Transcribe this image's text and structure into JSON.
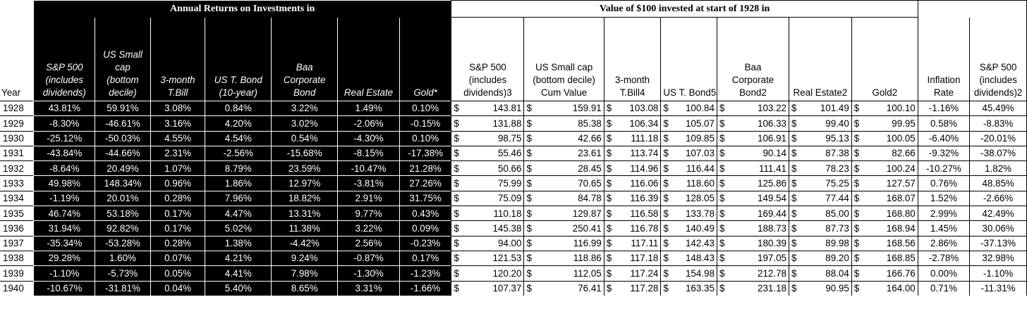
{
  "sections": {
    "annual": "Annual Returns on Investments in",
    "value": "Value of $100 invested at start of 1928 in"
  },
  "headers": {
    "year": "Year",
    "sp500": [
      "S&P 500",
      "(includes",
      "dividends)"
    ],
    "smallcap": [
      "US Small",
      "cap",
      "(bottom",
      "decile)"
    ],
    "tbill": [
      "3-month",
      "T.Bill"
    ],
    "tbond": [
      "US T. Bond",
      "(10-year)"
    ],
    "baa": [
      "Baa",
      "Corporate",
      "Bond"
    ],
    "realestate": [
      "Real Estate"
    ],
    "gold": [
      "Gold*"
    ],
    "v_sp500": [
      "S&P 500",
      "(includes",
      "dividends)3"
    ],
    "v_smallcap": [
      "US Small cap",
      "(bottom decile)",
      "Cum Value"
    ],
    "v_tbill": [
      "3-month",
      "T.Bill4"
    ],
    "v_tbond": [
      "US T. Bond5"
    ],
    "v_baa": [
      "Baa",
      "Corporate",
      "Bond2"
    ],
    "v_realestate": [
      "Real Estate2"
    ],
    "v_gold": [
      "Gold2"
    ],
    "inflation": [
      "Inflation",
      "Rate"
    ],
    "sp500_2": [
      "S&P 500",
      "(includes",
      "dividends)2"
    ]
  },
  "currency_symbol": "$",
  "rows": [
    {
      "year": "1928",
      "ret": [
        "43.81%",
        "59.91%",
        "3.08%",
        "0.84%",
        "3.22%",
        "1.49%",
        "0.10%"
      ],
      "val": [
        "143.81",
        "159.91",
        "103.08",
        "100.84",
        "103.22",
        "101.49",
        "100.10"
      ],
      "inflation": "-1.16%",
      "sp2": "45.49%"
    },
    {
      "year": "1929",
      "ret": [
        "-8.30%",
        "-46.61%",
        "3.16%",
        "4.20%",
        "3.02%",
        "-2.06%",
        "-0.15%"
      ],
      "val": [
        "131.88",
        "85.38",
        "106.34",
        "105.07",
        "106.33",
        "99.40",
        "99.95"
      ],
      "inflation": "0.58%",
      "sp2": "-8.83%"
    },
    {
      "year": "1930",
      "ret": [
        "-25.12%",
        "-50.03%",
        "4.55%",
        "4.54%",
        "0.54%",
        "-4.30%",
        "0.10%"
      ],
      "val": [
        "98.75",
        "42.66",
        "111.18",
        "109.85",
        "106.91",
        "95.13",
        "100.05"
      ],
      "inflation": "-6.40%",
      "sp2": "-20.01%"
    },
    {
      "year": "1931",
      "ret": [
        "-43.84%",
        "-44.66%",
        "2.31%",
        "-2.56%",
        "-15.68%",
        "-8.15%",
        "-17.38%"
      ],
      "val": [
        "55.46",
        "23.61",
        "113.74",
        "107.03",
        "90.14",
        "87.38",
        "82.66"
      ],
      "inflation": "-9.32%",
      "sp2": "-38.07%"
    },
    {
      "year": "1932",
      "ret": [
        "-8.64%",
        "20.49%",
        "1.07%",
        "8.79%",
        "23.59%",
        "-10.47%",
        "21.28%"
      ],
      "val": [
        "50.66",
        "28.45",
        "114.96",
        "116.44",
        "111.41",
        "78.23",
        "100.24"
      ],
      "inflation": "-10.27%",
      "sp2": "1.82%"
    },
    {
      "year": "1933",
      "ret": [
        "49.98%",
        "148.34%",
        "0.96%",
        "1.86%",
        "12.97%",
        "-3.81%",
        "27.26%"
      ],
      "val": [
        "75.99",
        "70.65",
        "116.06",
        "118.60",
        "125.86",
        "75.25",
        "127.57"
      ],
      "inflation": "0.76%",
      "sp2": "48.85%"
    },
    {
      "year": "1934",
      "ret": [
        "-1.19%",
        "20.01%",
        "0.28%",
        "7.96%",
        "18.82%",
        "2.91%",
        "31.75%"
      ],
      "val": [
        "75.09",
        "84.78",
        "116.39",
        "128.05",
        "149.54",
        "77.44",
        "168.07"
      ],
      "inflation": "1.52%",
      "sp2": "-2.66%"
    },
    {
      "year": "1935",
      "ret": [
        "46.74%",
        "53.18%",
        "0.17%",
        "4.47%",
        "13.31%",
        "9.77%",
        "0.43%"
      ],
      "val": [
        "110.18",
        "129.87",
        "116.58",
        "133.78",
        "169.44",
        "85.00",
        "168.80"
      ],
      "inflation": "2.99%",
      "sp2": "42.49%"
    },
    {
      "year": "1936",
      "ret": [
        "31.94%",
        "92.82%",
        "0.17%",
        "5.02%",
        "11.38%",
        "3.22%",
        "0.09%"
      ],
      "val": [
        "145.38",
        "250.41",
        "116.78",
        "140.49",
        "188.73",
        "87.73",
        "168.94"
      ],
      "inflation": "1.45%",
      "sp2": "30.06%"
    },
    {
      "year": "1937",
      "ret": [
        "-35.34%",
        "-53.28%",
        "0.28%",
        "1.38%",
        "-4.42%",
        "2.56%",
        "-0.23%"
      ],
      "val": [
        "94.00",
        "116.99",
        "117.11",
        "142.43",
        "180.39",
        "89.98",
        "168.56"
      ],
      "inflation": "2.86%",
      "sp2": "-37.13%"
    },
    {
      "year": "1938",
      "ret": [
        "29.28%",
        "1.60%",
        "0.07%",
        "4.21%",
        "9.24%",
        "-0.87%",
        "0.17%"
      ],
      "val": [
        "121.53",
        "118.86",
        "117.18",
        "148.43",
        "197.05",
        "89.20",
        "168.85"
      ],
      "inflation": "-2.78%",
      "sp2": "32.98%"
    },
    {
      "year": "1939",
      "ret": [
        "-1.10%",
        "-5.73%",
        "0.05%",
        "4.41%",
        "7.98%",
        "-1.30%",
        "-1.23%"
      ],
      "val": [
        "120.20",
        "112.05",
        "117.24",
        "154.98",
        "212.78",
        "88.04",
        "166.76"
      ],
      "inflation": "0.00%",
      "sp2": "-1.10%"
    },
    {
      "year": "1940",
      "ret": [
        "-10.67%",
        "-31.81%",
        "0.04%",
        "5.40%",
        "8.65%",
        "3.31%",
        "-1.66%"
      ],
      "val": [
        "107.37",
        "76.41",
        "117.28",
        "163.35",
        "231.18",
        "90.95",
        "164.00"
      ],
      "inflation": "0.71%",
      "sp2": "-11.31%"
    }
  ]
}
